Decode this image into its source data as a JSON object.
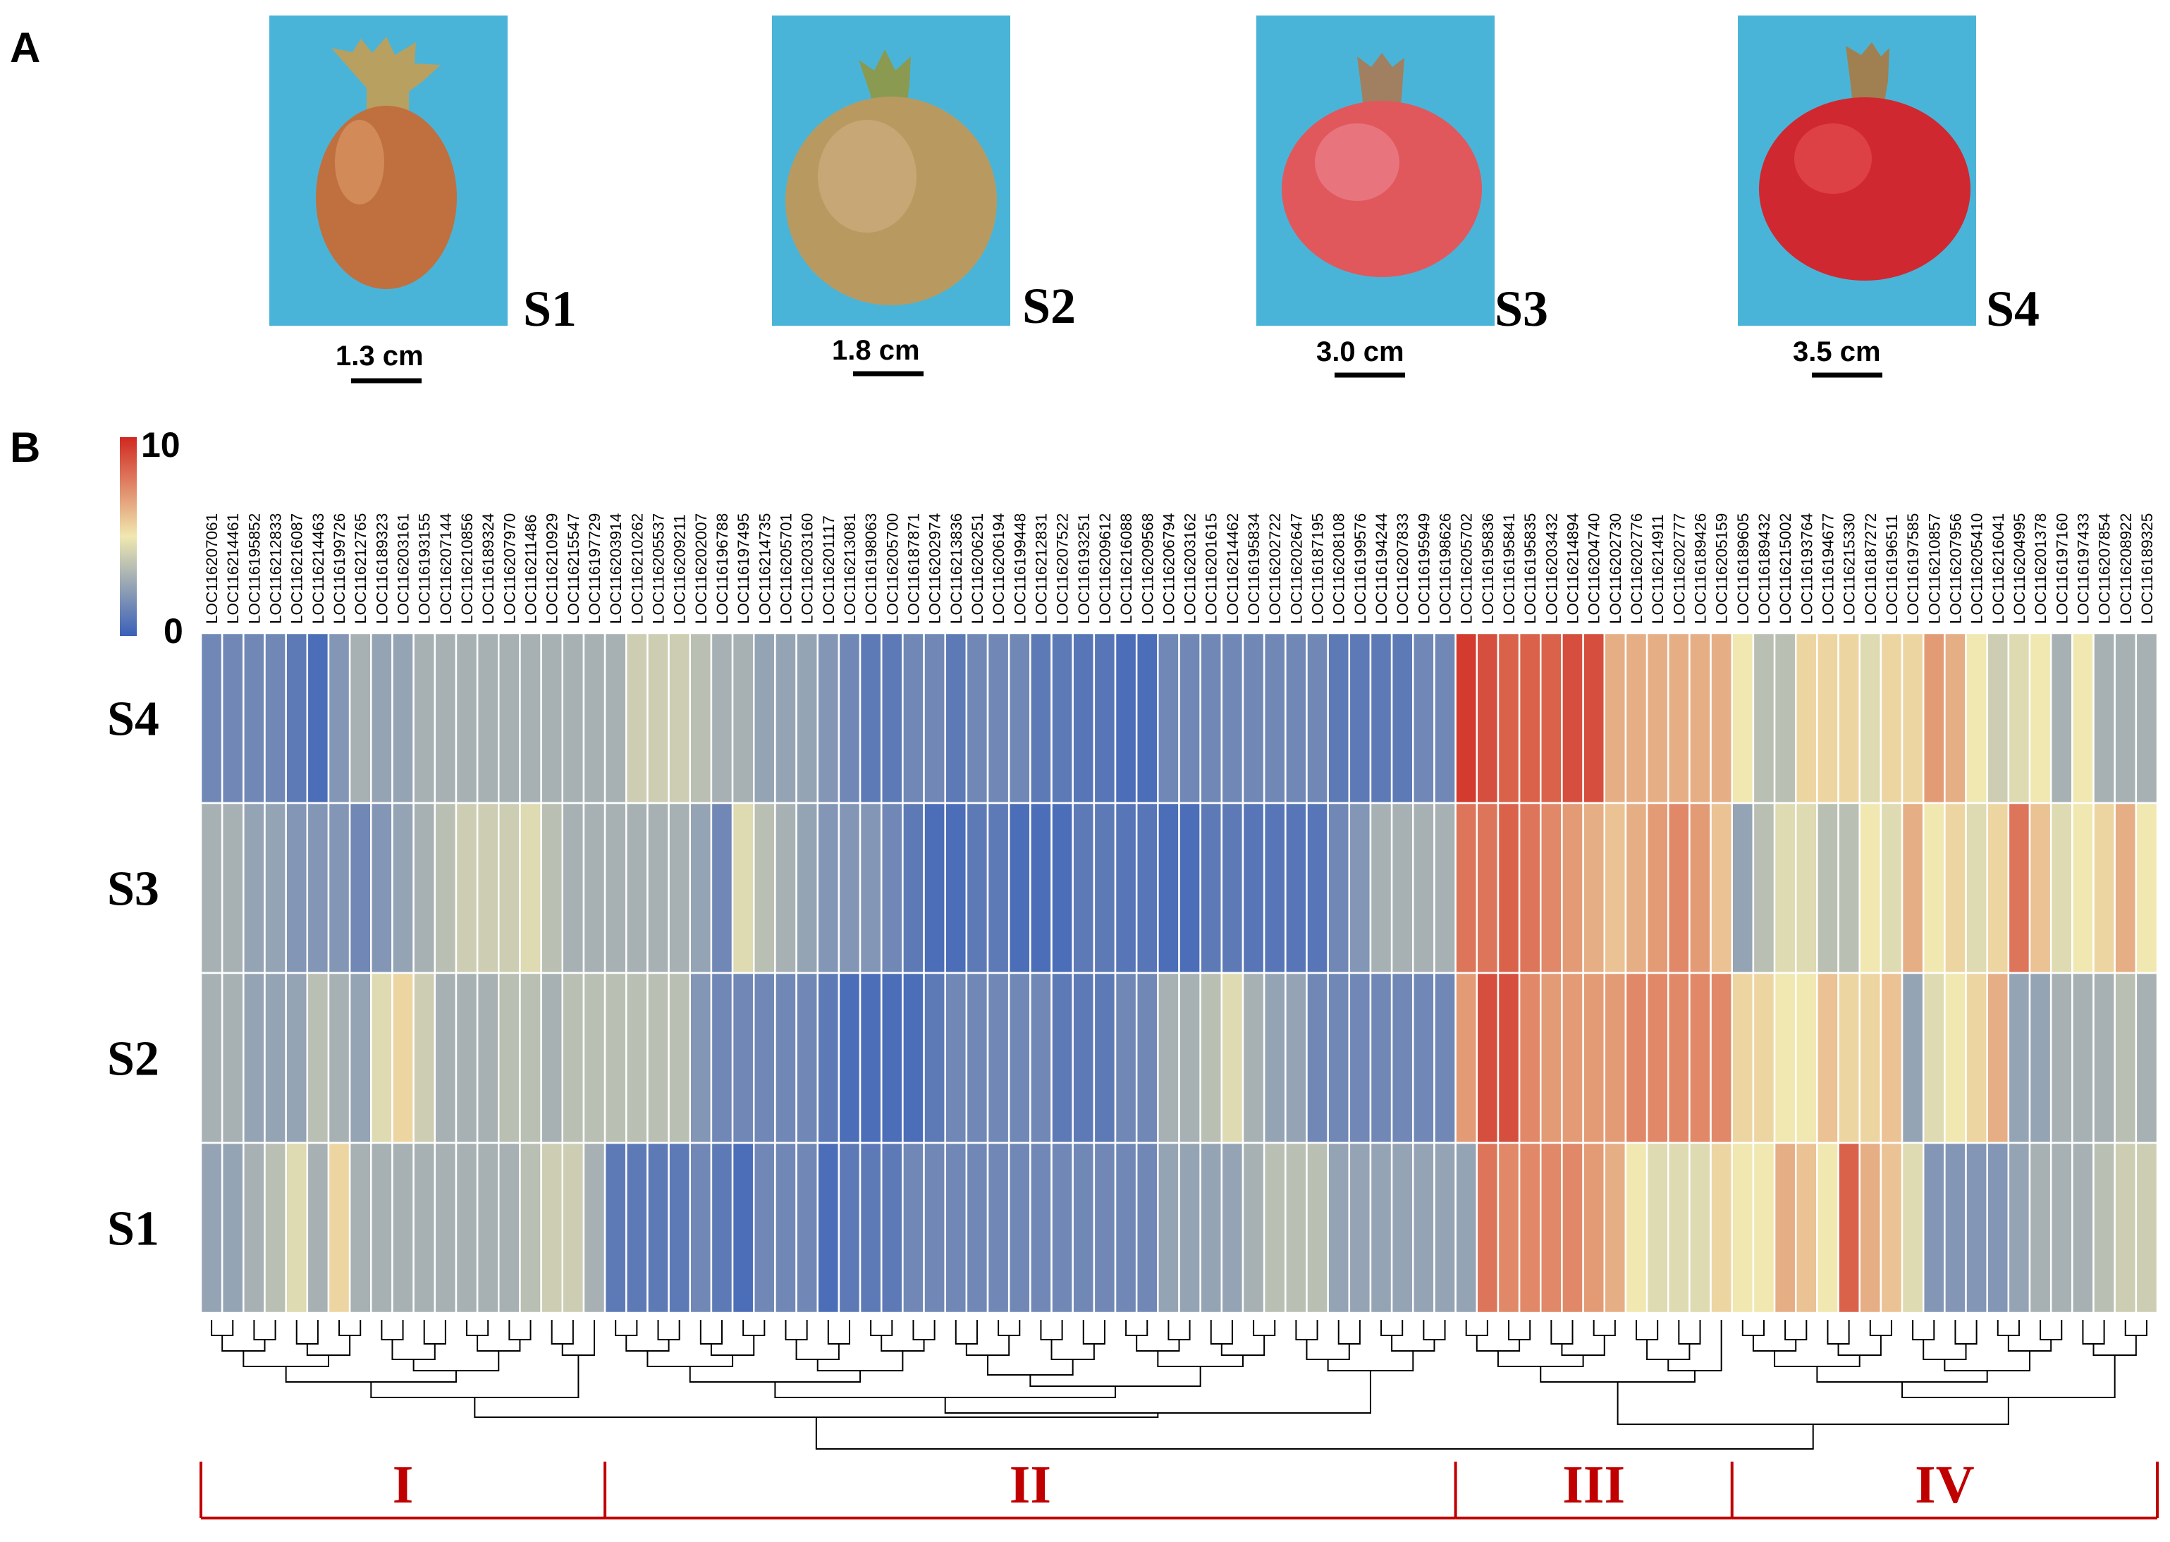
{
  "panel_a": {
    "label": "A",
    "photos": [
      {
        "stage": "S1",
        "scale": "1.3 cm",
        "fruit": "#c0703e",
        "highlight": "#e0a070",
        "crown": "#b8a060"
      },
      {
        "stage": "S2",
        "scale": "1.8 cm",
        "fruit": "#b89a60",
        "highlight": "#d8b890",
        "crown": "#8a9a50"
      },
      {
        "stage": "S3",
        "scale": "3.0 cm",
        "fruit": "#e0585c",
        "highlight": "#f090a0",
        "crown": "#a08060"
      },
      {
        "stage": "S4",
        "scale": "3.5 cm",
        "fruit": "#d02830",
        "highlight": "#f06060",
        "crown": "#a08050"
      }
    ],
    "photo_background": "#4ab4d8"
  },
  "chart_data": {
    "type": "heatmap",
    "panel_label": "B",
    "color_scale": {
      "min": 0,
      "max": 10,
      "min_label": "0",
      "max_label": "10",
      "colors": [
        "#3a5fb8",
        "#f0e8b0",
        "#d02820"
      ]
    },
    "rows": [
      "S4",
      "S3",
      "S2",
      "S1"
    ],
    "columns": [
      "LOC116207061",
      "LOC116214461",
      "LOC116195852",
      "LOC116212833",
      "LOC116216087",
      "LOC116214463",
      "LOC116199726",
      "LOC116212765",
      "LOC116189323",
      "LOC116203161",
      "LOC116193155",
      "LOC116207144",
      "LOC116210856",
      "LOC116189324",
      "LOC116207970",
      "LOC116211486",
      "LOC116210929",
      "LOC116215547",
      "LOC116197729",
      "LOC116203914",
      "LOC116210262",
      "LOC116205537",
      "LOC116209211",
      "LOC116202007",
      "LOC116196788",
      "LOC116197495",
      "LOC116214735",
      "LOC116205701",
      "LOC116203160",
      "LOC116201117",
      "LOC116213081",
      "LOC116198063",
      "LOC116205700",
      "LOC116187871",
      "LOC116202974",
      "LOC116213836",
      "LOC116206251",
      "LOC116206194",
      "LOC116199448",
      "LOC116212831",
      "LOC116207522",
      "LOC116193251",
      "LOC116209612",
      "LOC116216088",
      "LOC116209568",
      "LOC116206794",
      "LOC116203162",
      "LOC116201615",
      "LOC116214462",
      "LOC116195834",
      "LOC116202722",
      "LOC116202647",
      "LOC116187195",
      "LOC116208108",
      "LOC116199576",
      "LOC116194244",
      "LOC116207833",
      "LOC116195949",
      "LOC116198626",
      "LOC116205702",
      "LOC116195836",
      "LOC116195841",
      "LOC116195835",
      "LOC116203432",
      "LOC116214894",
      "LOC116204740",
      "LOC116202730",
      "LOC116202776",
      "LOC116214911",
      "LOC116202777",
      "LOC116189426",
      "LOC116205159",
      "LOC116189605",
      "LOC116189432",
      "LOC116215002",
      "LOC116193764",
      "LOC116194677",
      "LOC116215330",
      "LOC116187272",
      "LOC116196511",
      "LOC116197585",
      "LOC116210857",
      "LOC116207956",
      "LOC116205410",
      "LOC116216041",
      "LOC116204995",
      "LOC116201378",
      "LOC116197160",
      "LOC116197433",
      "LOC116207854",
      "LOC116208922",
      "LOC116189325"
    ],
    "values": [
      [
        1.5,
        1.5,
        1.5,
        1.5,
        1,
        0.5,
        2,
        3,
        2.5,
        2.5,
        3,
        3,
        3,
        3,
        3,
        3,
        3,
        3,
        3,
        3,
        4,
        4,
        4,
        3.5,
        3,
        3,
        2.5,
        2.5,
        2.5,
        2,
        1.5,
        1,
        1,
        1.5,
        1.5,
        1,
        1.5,
        1.5,
        1.5,
        1,
        1,
        0.8,
        0.8,
        0.5,
        0.5,
        1.5,
        1.5,
        1.5,
        1.5,
        1.5,
        1.5,
        1.5,
        1.5,
        1,
        1,
        1,
        1,
        1.5,
        1.5,
        9.5,
        9,
        8.5,
        8.5,
        8.5,
        9,
        9,
        6.5,
        6.5,
        6.5,
        6.5,
        6.5,
        6.5,
        5,
        3.5,
        3.5,
        5.5,
        5.5,
        5.5,
        4.5,
        5.5,
        5.5,
        7,
        6.5,
        5,
        4,
        4.5,
        5,
        3,
        5,
        3,
        3,
        3
      ],
      [
        3,
        3,
        2.5,
        2.5,
        2,
        2,
        2,
        1.5,
        2,
        2.5,
        3,
        3.5,
        4,
        4,
        4,
        4.5,
        3.5,
        3,
        3,
        3,
        3,
        3,
        3,
        2.5,
        1.5,
        4.5,
        3.5,
        3,
        2.5,
        2,
        2,
        2,
        1.5,
        1,
        0.5,
        0.5,
        1,
        1,
        0.5,
        0.5,
        0.5,
        1,
        1,
        0.8,
        0.8,
        0.5,
        0.5,
        1,
        1,
        0.8,
        0.8,
        0.8,
        0.8,
        1.5,
        2,
        3,
        3,
        3,
        3,
        8,
        8,
        8.5,
        8,
        7.5,
        7,
        6.5,
        6,
        6.5,
        7,
        7.5,
        7,
        6,
        2.5,
        3.5,
        4.5,
        4.5,
        3.5,
        3.5,
        5,
        4.5,
        6.5,
        5,
        5.5,
        4.5,
        5.5,
        8,
        6,
        4.5,
        5,
        5.5,
        6.5,
        5
      ],
      [
        3,
        3,
        2.5,
        2.5,
        2.5,
        3.5,
        3,
        2.5,
        4.5,
        5.5,
        4,
        3,
        3,
        3,
        3.5,
        3.5,
        3,
        3.5,
        3.5,
        3.5,
        3.5,
        3.5,
        3.5,
        2,
        1.5,
        1.5,
        1.5,
        1.5,
        1.5,
        1,
        0.5,
        0.5,
        0.5,
        0.5,
        1,
        1.5,
        1.5,
        1.5,
        1.5,
        1.5,
        1,
        1,
        1,
        1.5,
        1.5,
        3,
        3,
        3.5,
        4.5,
        3,
        2.5,
        2.5,
        1.5,
        1.5,
        1.5,
        1.5,
        1.5,
        1.5,
        1.5,
        7,
        9,
        9,
        7.5,
        7,
        7,
        7,
        7,
        7.5,
        7.5,
        7.5,
        7.5,
        7.5,
        5.5,
        5.5,
        5,
        5,
        6,
        5.5,
        5.5,
        6,
        2.5,
        4.5,
        5,
        5.5,
        6.5,
        2.5,
        2.5,
        3,
        3,
        3,
        3.5,
        3
      ],
      [
        2.5,
        2.5,
        3,
        3.5,
        4.5,
        3,
        5.5,
        3,
        3,
        3,
        3,
        3,
        3,
        3,
        3,
        3.5,
        4,
        4,
        3,
        1,
        1,
        1,
        1,
        1.5,
        1,
        0.5,
        1.5,
        1.5,
        1.5,
        0.5,
        1,
        1,
        1,
        1.5,
        1.5,
        1.5,
        1.5,
        1.5,
        1.5,
        1.5,
        1.5,
        1.5,
        1.5,
        1.5,
        1.5,
        2.5,
        2.5,
        2.5,
        2.5,
        3,
        3.5,
        3.5,
        3.5,
        2.5,
        2.5,
        2.5,
        2.5,
        2.5,
        2.5,
        2.5,
        8,
        7.5,
        7.5,
        7.5,
        7.5,
        7,
        6.5,
        5,
        4.5,
        4.5,
        4.5,
        5.5,
        5,
        5,
        6.5,
        6,
        5,
        8.5,
        6.5,
        6,
        4.5,
        2,
        2,
        2,
        2,
        2.5,
        3,
        3,
        3,
        3.5,
        4,
        4
      ]
    ],
    "clusters": [
      {
        "label": "I",
        "start": 0,
        "end": 18
      },
      {
        "label": "II",
        "start": 19,
        "end": 58
      },
      {
        "label": "III",
        "start": 59,
        "end": 71
      },
      {
        "label": "IV",
        "start": 72,
        "end": 91
      }
    ]
  }
}
